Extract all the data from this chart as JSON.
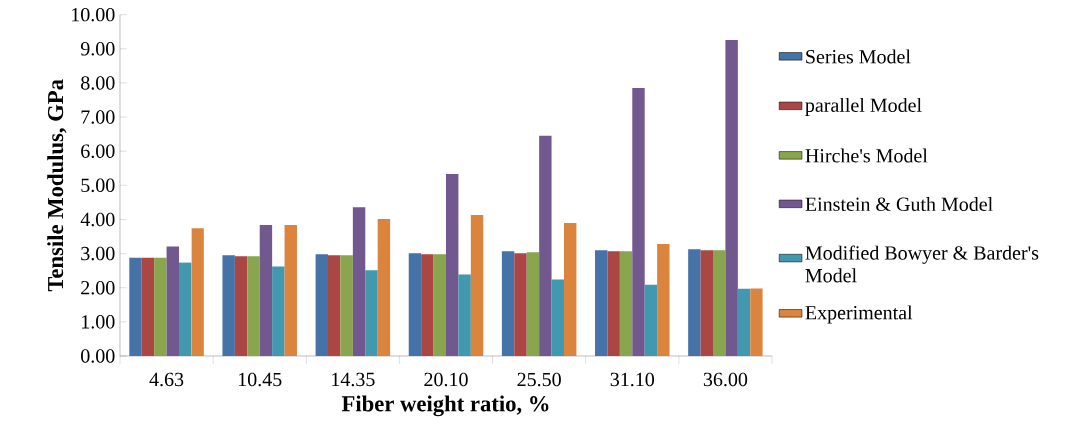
{
  "chart_data": {
    "type": "bar",
    "categories": [
      "4.63",
      "10.45",
      "14.35",
      "20.10",
      "25.50",
      "31.10",
      "36.00"
    ],
    "series": [
      {
        "name": "Series Model",
        "color": "#4572a7",
        "values": [
          2.88,
          2.95,
          2.98,
          3.01,
          3.07,
          3.1,
          3.13
        ]
      },
      {
        "name": "parallel Model",
        "color": "#aa4643",
        "values": [
          2.88,
          2.92,
          2.95,
          2.98,
          3.01,
          3.07,
          3.1
        ]
      },
      {
        "name": "Hirche's Model",
        "color": "#89a54e",
        "values": [
          2.88,
          2.92,
          2.95,
          2.98,
          3.04,
          3.07,
          3.1
        ]
      },
      {
        "name": "Einstein & Guth Model",
        "color": "#71588f",
        "values": [
          3.21,
          3.84,
          4.36,
          5.33,
          6.45,
          7.85,
          9.26
        ]
      },
      {
        "name": "Modified Bowyer & Barder's Model",
        "color": "#4198af",
        "values": [
          2.74,
          2.62,
          2.51,
          2.39,
          2.24,
          2.09,
          1.97
        ]
      },
      {
        "name": "Experimental",
        "color": "#db843d",
        "values": [
          3.74,
          3.84,
          4.01,
          4.13,
          3.9,
          3.28,
          1.98
        ]
      }
    ],
    "xlabel": "Fiber weight ratio, %",
    "ylabel": "Tensile Modulus, GPa",
    "ylim": [
      0,
      10
    ],
    "yticks": [
      {
        "value": 0,
        "label": "0.00"
      },
      {
        "value": 1,
        "label": "1.00"
      },
      {
        "value": 2,
        "label": "2.00"
      },
      {
        "value": 3,
        "label": "3.00"
      },
      {
        "value": 4,
        "label": "4.00"
      },
      {
        "value": 5,
        "label": "5.00"
      },
      {
        "value": 6,
        "label": "6.00"
      },
      {
        "value": 7,
        "label": "7.00"
      },
      {
        "value": 8,
        "label": "8.00"
      },
      {
        "value": 9,
        "label": "9.00"
      },
      {
        "value": 10,
        "label": "10.00"
      }
    ],
    "legend": "right"
  }
}
